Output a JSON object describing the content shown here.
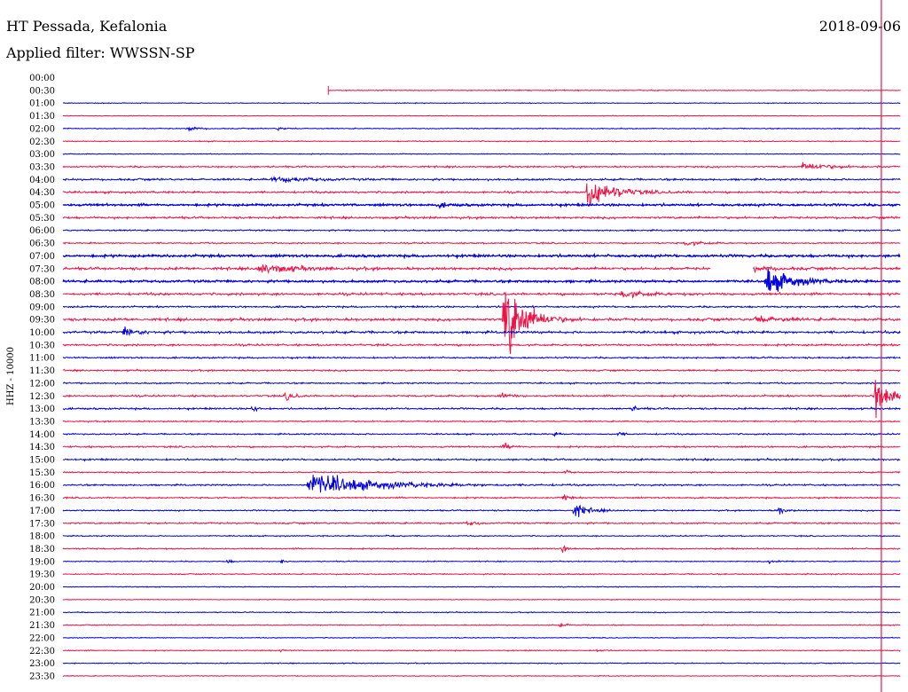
{
  "header": {
    "station": "HT Pessada, Kefalonia",
    "filter": "Applied filter: WWSSN-SP",
    "date": "2018-09-06"
  },
  "colors": {
    "even": "#0000dd",
    "odd": "#ee1144",
    "marker": "#ee1144"
  },
  "chart_data": {
    "type": "helicorder",
    "ylabel": "HHZ - 10000",
    "times": [
      "00:00",
      "00:30",
      "01:00",
      "01:30",
      "02:00",
      "02:30",
      "03:00",
      "03:30",
      "04:00",
      "04:30",
      "05:00",
      "05:30",
      "06:00",
      "06:30",
      "07:00",
      "07:30",
      "08:00",
      "08:30",
      "09:00",
      "09:30",
      "10:00",
      "10:30",
      "11:00",
      "11:30",
      "12:00",
      "12:30",
      "13:00",
      "13:30",
      "14:00",
      "14:30",
      "15:00",
      "15:30",
      "16:00",
      "16:30",
      "17:00",
      "17:30",
      "18:00",
      "18:30",
      "19:00",
      "19:30",
      "20:00",
      "20:30",
      "21:00",
      "21:30",
      "22:00",
      "22:30",
      "23:00",
      "23:30"
    ],
    "trace_start": {
      "row": 1,
      "minute": 9.5
    },
    "current_time_minute": 29.3,
    "noise_levels": [
      0,
      0.6,
      0.5,
      0.4,
      0.6,
      0.6,
      0.5,
      1.0,
      1.2,
      1.2,
      1.4,
      1.3,
      0.9,
      0.9,
      1.5,
      1.6,
      1.4,
      1.5,
      1.1,
      1.6,
      1.5,
      1.2,
      1.0,
      1.0,
      0.9,
      1.1,
      1.1,
      0.8,
      0.9,
      1.0,
      1.1,
      0.8,
      1.0,
      0.9,
      0.8,
      1.0,
      0.7,
      0.8,
      0.6,
      0.7,
      0.5,
      0.5,
      0.6,
      0.6,
      0.5,
      0.6,
      0.6,
      0.5
    ],
    "events": [
      {
        "row": 4,
        "minute": 4.5,
        "amp": 5,
        "dur": 0.5
      },
      {
        "row": 4,
        "minute": 7.7,
        "amp": 2,
        "dur": 0.6
      },
      {
        "row": 7,
        "minute": 26.5,
        "amp": 5,
        "dur": 2.0
      },
      {
        "row": 8,
        "minute": 7.5,
        "amp": 4,
        "dur": 2.5
      },
      {
        "row": 9,
        "minute": 18.8,
        "amp": 22,
        "dur": 1.8
      },
      {
        "row": 10,
        "minute": 13.5,
        "amp": 3,
        "dur": 0.6
      },
      {
        "row": 13,
        "minute": 22.3,
        "amp": 3,
        "dur": 1.2
      },
      {
        "row": 14,
        "minute": 30,
        "amp": 6,
        "dur": 2.5
      },
      {
        "row": 15,
        "minute": 7,
        "amp": 7,
        "dur": 2.5
      },
      {
        "row": 15,
        "minute": 24.5,
        "amp": 4,
        "dur": 1.5
      },
      {
        "row": 16,
        "minute": 25.2,
        "amp": 20,
        "dur": 1.6
      },
      {
        "row": 17,
        "minute": 20,
        "amp": 4,
        "dur": 2.0
      },
      {
        "row": 19,
        "minute": 15.8,
        "amp": 65,
        "dur": 1.4
      },
      {
        "row": 19,
        "minute": 24.8,
        "amp": 5,
        "dur": 1.5
      },
      {
        "row": 20,
        "minute": 2.2,
        "amp": 6,
        "dur": 1.0
      },
      {
        "row": 25,
        "minute": 8.0,
        "amp": 8,
        "dur": 0.5
      },
      {
        "row": 25,
        "minute": 15.6,
        "amp": 6,
        "dur": 0.6
      },
      {
        "row": 25,
        "minute": 29.1,
        "amp": 40,
        "dur": 1.0
      },
      {
        "row": 26,
        "minute": 6.8,
        "amp": 6,
        "dur": 0.3
      },
      {
        "row": 26,
        "minute": 20.4,
        "amp": 3,
        "dur": 0.5
      },
      {
        "row": 28,
        "minute": 17.6,
        "amp": 3,
        "dur": 0.3
      },
      {
        "row": 28,
        "minute": 19.9,
        "amp": 3,
        "dur": 0.3
      },
      {
        "row": 29,
        "minute": 15.8,
        "amp": 5,
        "dur": 0.5
      },
      {
        "row": 31,
        "minute": 18.0,
        "amp": 3,
        "dur": 0.3
      },
      {
        "row": 32,
        "minute": 8.8,
        "amp": 16,
        "dur": 4.5
      },
      {
        "row": 33,
        "minute": 17.9,
        "amp": 5,
        "dur": 0.4
      },
      {
        "row": 34,
        "minute": 18.3,
        "amp": 10,
        "dur": 1.0
      },
      {
        "row": 34,
        "minute": 25.6,
        "amp": 6,
        "dur": 0.5
      },
      {
        "row": 35,
        "minute": 14.5,
        "amp": 4,
        "dur": 0.5
      },
      {
        "row": 36,
        "minute": 11.6,
        "amp": 2,
        "dur": 0.6
      },
      {
        "row": 37,
        "minute": 17.9,
        "amp": 6,
        "dur": 0.4
      },
      {
        "row": 38,
        "minute": 5.9,
        "amp": 3,
        "dur": 0.3
      },
      {
        "row": 38,
        "minute": 7.8,
        "amp": 3,
        "dur": 0.4
      },
      {
        "row": 38,
        "minute": 25.3,
        "amp": 2,
        "dur": 1.0
      },
      {
        "row": 43,
        "minute": 17.8,
        "amp": 2,
        "dur": 0.6
      },
      {
        "row": 45,
        "minute": 7.8,
        "amp": 2,
        "dur": 0.4
      },
      {
        "row": 45,
        "minute": 19.1,
        "amp": 2,
        "dur": 0.5
      }
    ],
    "gaps": [
      {
        "row": 15,
        "start": 23.2,
        "end": 24.7
      }
    ]
  }
}
